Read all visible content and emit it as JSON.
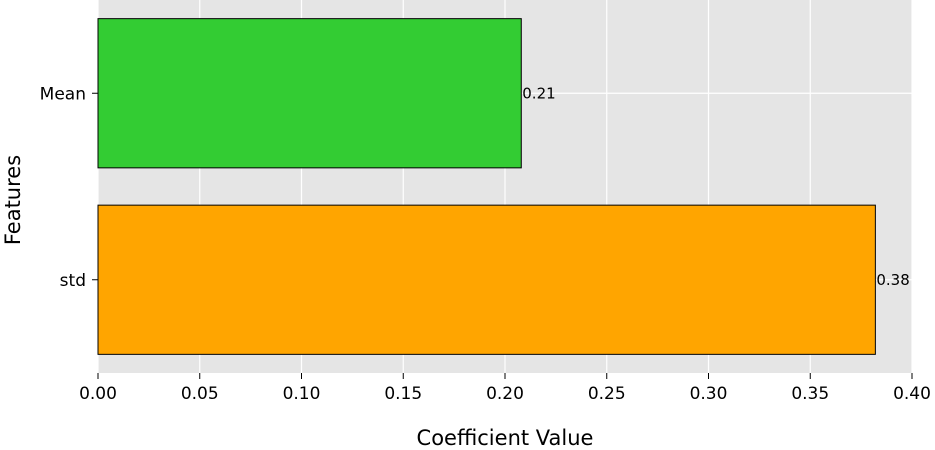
{
  "chart_data": {
    "type": "bar",
    "orientation": "horizontal",
    "categories": [
      "Mean",
      "std"
    ],
    "values": [
      0.208,
      0.382
    ],
    "data_labels": [
      "0.21",
      "0.38"
    ],
    "colors": [
      "#33cc33",
      "#ffa500"
    ],
    "xlabel": "Coefficient Value",
    "ylabel": "Features",
    "xlim": [
      0,
      0.4
    ],
    "xticks": [
      0.0,
      0.05,
      0.1,
      0.15,
      0.2,
      0.25,
      0.3,
      0.35,
      0.4
    ],
    "xtick_labels": [
      "0.00",
      "0.05",
      "0.10",
      "0.15",
      "0.20",
      "0.25",
      "0.30",
      "0.35",
      "0.40"
    ],
    "grid": true,
    "background_color": "#e5e5e5",
    "grid_color": "#ffffff",
    "legend": "none"
  }
}
